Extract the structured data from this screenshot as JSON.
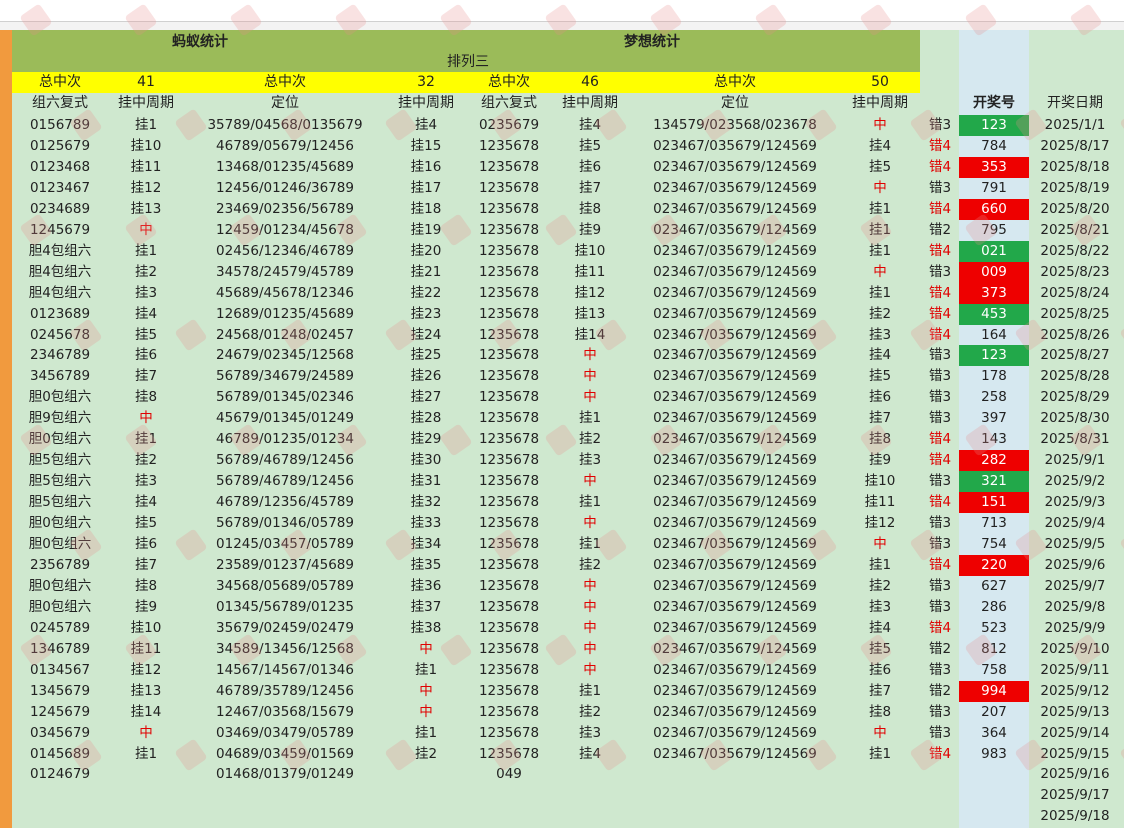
{
  "header": {
    "left_title": "蚂蚁统计",
    "right_title": "梦想统计",
    "game": "排列三",
    "totals": [
      {
        "label": "总中次",
        "value": "41"
      },
      {
        "label": "总中次",
        "value": "32"
      },
      {
        "label": "总中次",
        "value": "46"
      },
      {
        "label": "总中次",
        "value": "50"
      }
    ],
    "columns": [
      "组六复式",
      "挂中周期",
      "定位",
      "挂中周期",
      "组六复式",
      "挂中周期",
      "定位",
      "挂中周期",
      "",
      "开奖号",
      "开奖日期"
    ]
  },
  "rows": [
    {
      "a": "0156789",
      "b": "挂1",
      "c": "35789/04568/0135679",
      "d": "挂4",
      "e": "0235679",
      "f": "挂4",
      "g": "134579/023568/023678",
      "h": "中",
      "i": "错3",
      "num": "123",
      "date": "2025/1/1",
      "hl": "g"
    },
    {
      "a": "0125679",
      "b": "挂10",
      "c": "46789/05679/12456",
      "d": "挂15",
      "e": "1235678",
      "f": "挂5",
      "g": "023467/035679/124569",
      "h": "挂4",
      "i": "错4",
      "num": "784",
      "date": "2025/8/17",
      "hl": ""
    },
    {
      "a": "0123468",
      "b": "挂11",
      "c": "13468/01235/45689",
      "d": "挂16",
      "e": "1235678",
      "f": "挂6",
      "g": "023467/035679/124569",
      "h": "挂5",
      "i": "错4",
      "num": "353",
      "date": "2025/8/18",
      "hl": "r"
    },
    {
      "a": "0123467",
      "b": "挂12",
      "c": "12456/01246/36789",
      "d": "挂17",
      "e": "1235678",
      "f": "挂7",
      "g": "023467/035679/124569",
      "h": "中",
      "i": "错3",
      "num": "791",
      "date": "2025/8/19",
      "hl": ""
    },
    {
      "a": "0234689",
      "b": "挂13",
      "c": "23469/02356/56789",
      "d": "挂18",
      "e": "1235678",
      "f": "挂8",
      "g": "023467/035679/124569",
      "h": "挂1",
      "i": "错4",
      "num": "660",
      "date": "2025/8/20",
      "hl": "r"
    },
    {
      "a": "1245679",
      "b": "中",
      "c": "12459/01234/45678",
      "d": "挂19",
      "e": "1235678",
      "f": "挂9",
      "g": "023467/035679/124569",
      "h": "挂1",
      "i": "错2",
      "num": "795",
      "date": "2025/8/21",
      "hl": ""
    },
    {
      "a": "胆4包组六",
      "b": "挂1",
      "c": "02456/12346/46789",
      "d": "挂20",
      "e": "1235678",
      "f": "挂10",
      "g": "023467/035679/124569",
      "h": "挂1",
      "i": "错4",
      "num": "021",
      "date": "2025/8/22",
      "hl": "g"
    },
    {
      "a": "胆4包组六",
      "b": "挂2",
      "c": "34578/24579/45789",
      "d": "挂21",
      "e": "1235678",
      "f": "挂11",
      "g": "023467/035679/124569",
      "h": "中",
      "i": "错3",
      "num": "009",
      "date": "2025/8/23",
      "hl": "r"
    },
    {
      "a": "胆4包组六",
      "b": "挂3",
      "c": "45689/45678/12346",
      "d": "挂22",
      "e": "1235678",
      "f": "挂12",
      "g": "023467/035679/124569",
      "h": "挂1",
      "i": "错4",
      "num": "373",
      "date": "2025/8/24",
      "hl": "r"
    },
    {
      "a": "0123689",
      "b": "挂4",
      "c": "12689/01235/45689",
      "d": "挂23",
      "e": "1235678",
      "f": "挂13",
      "g": "023467/035679/124569",
      "h": "挂2",
      "i": "错4",
      "num": "453",
      "date": "2025/8/25",
      "hl": "g"
    },
    {
      "a": "0245678",
      "b": "挂5",
      "c": "24568/01248/02457",
      "d": "挂24",
      "e": "1235678",
      "f": "挂14",
      "g": "023467/035679/124569",
      "h": "挂3",
      "i": "错4",
      "num": "164",
      "date": "2025/8/26",
      "hl": ""
    },
    {
      "a": "2346789",
      "b": "挂6",
      "c": "24679/02345/12568",
      "d": "挂25",
      "e": "1235678",
      "f": "中",
      "g": "023467/035679/124569",
      "h": "挂4",
      "i": "错3",
      "num": "123",
      "date": "2025/8/27",
      "hl": "g"
    },
    {
      "a": "3456789",
      "b": "挂7",
      "c": "56789/34679/24589",
      "d": "挂26",
      "e": "1235678",
      "f": "中",
      "g": "023467/035679/124569",
      "h": "挂5",
      "i": "错3",
      "num": "178",
      "date": "2025/8/28",
      "hl": ""
    },
    {
      "a": "胆0包组六",
      "b": "挂8",
      "c": "56789/01345/02346",
      "d": "挂27",
      "e": "1235678",
      "f": "中",
      "g": "023467/035679/124569",
      "h": "挂6",
      "i": "错3",
      "num": "258",
      "date": "2025/8/29",
      "hl": ""
    },
    {
      "a": "胆9包组六",
      "b": "中",
      "c": "45679/01345/01249",
      "d": "挂28",
      "e": "1235678",
      "f": "挂1",
      "g": "023467/035679/124569",
      "h": "挂7",
      "i": "错3",
      "num": "397",
      "date": "2025/8/30",
      "hl": ""
    },
    {
      "a": "胆0包组六",
      "b": "挂1",
      "c": "46789/01235/01234",
      "d": "挂29",
      "e": "1235678",
      "f": "挂2",
      "g": "023467/035679/124569",
      "h": "挂8",
      "i": "错4",
      "num": "143",
      "date": "2025/8/31",
      "hl": ""
    },
    {
      "a": "胆5包组六",
      "b": "挂2",
      "c": "56789/46789/12456",
      "d": "挂30",
      "e": "1235678",
      "f": "挂3",
      "g": "023467/035679/124569",
      "h": "挂9",
      "i": "错4",
      "num": "282",
      "date": "2025/9/1",
      "hl": "r"
    },
    {
      "a": "胆5包组六",
      "b": "挂3",
      "c": "56789/46789/12456",
      "d": "挂31",
      "e": "1235678",
      "f": "中",
      "g": "023467/035679/124569",
      "h": "挂10",
      "i": "错3",
      "num": "321",
      "date": "2025/9/2",
      "hl": "g"
    },
    {
      "a": "胆5包组六",
      "b": "挂4",
      "c": "46789/12356/45789",
      "d": "挂32",
      "e": "1235678",
      "f": "挂1",
      "g": "023467/035679/124569",
      "h": "挂11",
      "i": "错4",
      "num": "151",
      "date": "2025/9/3",
      "hl": "r"
    },
    {
      "a": "胆0包组六",
      "b": "挂5",
      "c": "56789/01346/05789",
      "d": "挂33",
      "e": "1235678",
      "f": "中",
      "g": "023467/035679/124569",
      "h": "挂12",
      "i": "错3",
      "num": "713",
      "date": "2025/9/4",
      "hl": ""
    },
    {
      "a": "胆0包组六",
      "b": "挂6",
      "c": "01245/03457/05789",
      "d": "挂34",
      "e": "1235678",
      "f": "挂1",
      "g": "023467/035679/124569",
      "h": "中",
      "i": "错3",
      "num": "754",
      "date": "2025/9/5",
      "hl": ""
    },
    {
      "a": "2356789",
      "b": "挂7",
      "c": "23589/01237/45689",
      "d": "挂35",
      "e": "1235678",
      "f": "挂2",
      "g": "023467/035679/124569",
      "h": "挂1",
      "i": "错4",
      "num": "220",
      "date": "2025/9/6",
      "hl": "r"
    },
    {
      "a": "胆0包组六",
      "b": "挂8",
      "c": "34568/05689/05789",
      "d": "挂36",
      "e": "1235678",
      "f": "中",
      "g": "023467/035679/124569",
      "h": "挂2",
      "i": "错3",
      "num": "627",
      "date": "2025/9/7",
      "hl": ""
    },
    {
      "a": "胆0包组六",
      "b": "挂9",
      "c": "01345/56789/01235",
      "d": "挂37",
      "e": "1235678",
      "f": "中",
      "g": "023467/035679/124569",
      "h": "挂3",
      "i": "错3",
      "num": "286",
      "date": "2025/9/8",
      "hl": ""
    },
    {
      "a": "0245789",
      "b": "挂10",
      "c": "35679/02459/02479",
      "d": "挂38",
      "e": "1235678",
      "f": "中",
      "g": "023467/035679/124569",
      "h": "挂4",
      "i": "错4",
      "num": "523",
      "date": "2025/9/9",
      "hl": ""
    },
    {
      "a": "1346789",
      "b": "挂11",
      "c": "34589/13456/12568",
      "d": "中",
      "e": "1235678",
      "f": "中",
      "g": "023467/035679/124569",
      "h": "挂5",
      "i": "错2",
      "num": "812",
      "date": "2025/9/10",
      "hl": ""
    },
    {
      "a": "0134567",
      "b": "挂12",
      "c": "14567/14567/01346",
      "d": "挂1",
      "e": "1235678",
      "f": "中",
      "g": "023467/035679/124569",
      "h": "挂6",
      "i": "错3",
      "num": "758",
      "date": "2025/9/11",
      "hl": ""
    },
    {
      "a": "1345679",
      "b": "挂13",
      "c": "46789/35789/12456",
      "d": "中",
      "e": "1235678",
      "f": "挂1",
      "g": "023467/035679/124569",
      "h": "挂7",
      "i": "错2",
      "num": "994",
      "date": "2025/9/12",
      "hl": "r"
    },
    {
      "a": "1245679",
      "b": "挂14",
      "c": "12467/03568/15679",
      "d": "中",
      "e": "1235678",
      "f": "挂2",
      "g": "023467/035679/124569",
      "h": "挂8",
      "i": "错3",
      "num": "207",
      "date": "2025/9/13",
      "hl": ""
    },
    {
      "a": "0345679",
      "b": "中",
      "c": "03469/03479/05789",
      "d": "挂1",
      "e": "1235678",
      "f": "挂3",
      "g": "023467/035679/124569",
      "h": "中",
      "i": "错3",
      "num": "364",
      "date": "2025/9/14",
      "hl": ""
    },
    {
      "a": "0145689",
      "b": "挂1",
      "c": "04689/03459/01569",
      "d": "挂2",
      "e": "1235678",
      "f": "挂4",
      "g": "023467/035679/124569",
      "h": "挂1",
      "i": "错4",
      "num": "983",
      "date": "2025/9/15",
      "hl": ""
    },
    {
      "a": "0124679",
      "b": "",
      "c": "01468/01379/01249",
      "d": "",
      "e": "049",
      "f": "",
      "g": "",
      "h": "",
      "i": "",
      "num": "",
      "date": "2025/9/16",
      "hl": ""
    },
    {
      "a": "",
      "b": "",
      "c": "",
      "d": "",
      "e": "",
      "f": "",
      "g": "",
      "h": "",
      "i": "",
      "num": "",
      "date": "2025/9/17",
      "hl": ""
    },
    {
      "a": "",
      "b": "",
      "c": "",
      "d": "",
      "e": "",
      "f": "",
      "g": "",
      "h": "",
      "i": "",
      "num": "",
      "date": "2025/9/18",
      "hl": ""
    }
  ]
}
